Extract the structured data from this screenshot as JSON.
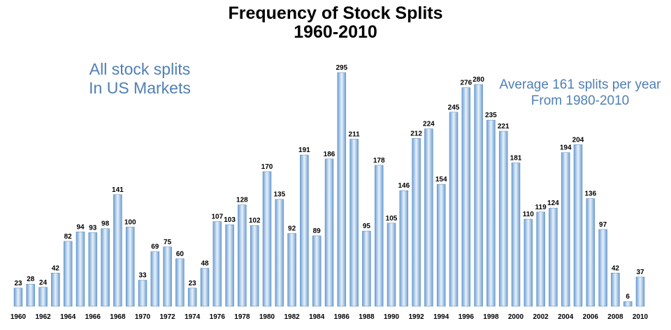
{
  "chart_data": {
    "type": "bar",
    "title_line1": "Frequency of Stock Splits",
    "title_line2": "1960-2010",
    "annotation_left_line1": "All stock splits",
    "annotation_left_line2": "In US Markets",
    "annotation_right_line1": "Average 161 splits per year",
    "annotation_right_line2": "From 1980-2010",
    "xlabel": "",
    "ylabel": "",
    "ylim": [
      0,
      300
    ],
    "grid": false,
    "legend": "none",
    "bar_color_dark": "#6b9fd3",
    "bar_color_light": "#e9f1fa",
    "categories": [
      "1960",
      "1961",
      "1962",
      "1963",
      "1964",
      "1965",
      "1966",
      "1967",
      "1968",
      "1969",
      "1970",
      "1971",
      "1972",
      "1973",
      "1974",
      "1975",
      "1976",
      "1977",
      "1978",
      "1979",
      "1980",
      "1981",
      "1982",
      "1983",
      "1984",
      "1985",
      "1986",
      "1987",
      "1988",
      "1989",
      "1990",
      "1991",
      "1992",
      "1993",
      "1994",
      "1995",
      "1996",
      "1997",
      "1998",
      "1999",
      "2000",
      "2001",
      "2002",
      "2003",
      "2004",
      "2005",
      "2006",
      "2007",
      "2008",
      "2009",
      "2010"
    ],
    "values": [
      23,
      28,
      24,
      42,
      82,
      94,
      93,
      98,
      141,
      100,
      33,
      69,
      75,
      60,
      23,
      48,
      107,
      103,
      128,
      102,
      170,
      135,
      92,
      191,
      89,
      186,
      295,
      211,
      95,
      178,
      105,
      146,
      212,
      224,
      154,
      245,
      276,
      280,
      235,
      221,
      181,
      110,
      119,
      124,
      194,
      204,
      136,
      97,
      42,
      6,
      37
    ],
    "tick_labels": [
      "1960",
      "1962",
      "1964",
      "1966",
      "1968",
      "1970",
      "1972",
      "1974",
      "1976",
      "1978",
      "1980",
      "1982",
      "1984",
      "1986",
      "1988",
      "1990",
      "1992",
      "1994",
      "1996",
      "1998",
      "2000",
      "2002",
      "2004",
      "2006",
      "2008",
      "2010"
    ]
  }
}
